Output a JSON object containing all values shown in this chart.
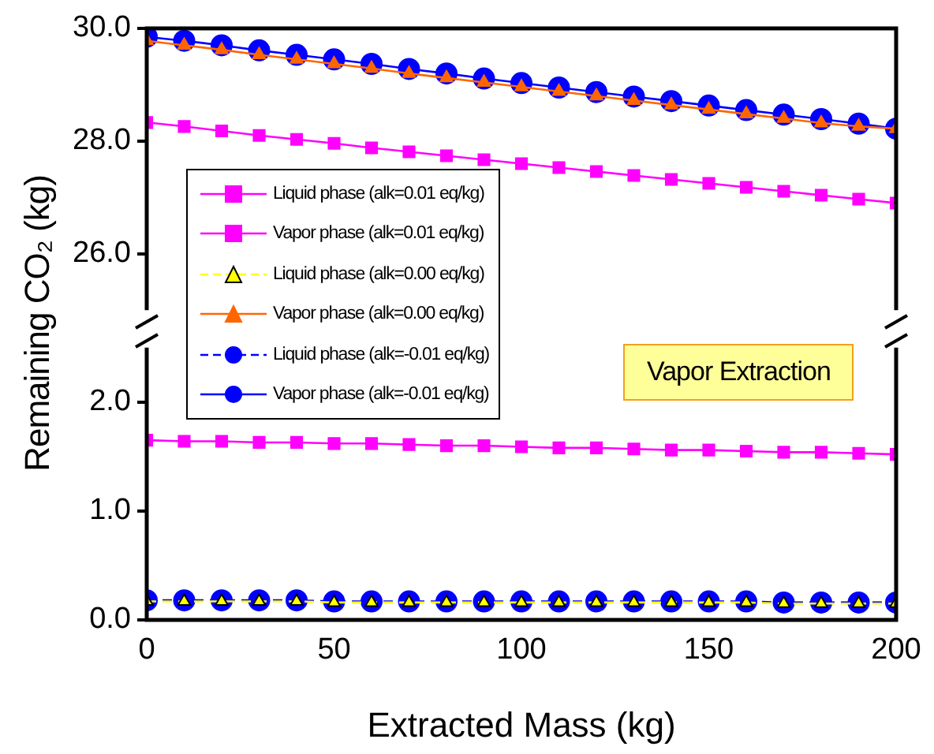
{
  "chart_data": [
    {
      "type": "line",
      "ylabel": "Remaining CO₂ (kg)",
      "x": [
        0,
        10,
        20,
        30,
        40,
        50,
        60,
        70,
        80,
        90,
        100,
        110,
        120,
        130,
        140,
        150,
        160,
        170,
        180,
        190,
        200
      ],
      "xlim": [
        0,
        200
      ],
      "xticks": [
        0,
        50,
        100,
        150,
        200
      ],
      "ylim": [
        25,
        30
      ],
      "yticks": [
        {
          "value": 26,
          "label": "26.0"
        },
        {
          "value": 28,
          "label": "28.0"
        },
        {
          "value": 30,
          "label": "30.0"
        }
      ],
      "tick_labels": "y",
      "grid": false,
      "legend": "bottom left",
      "series": [
        {
          "name": "Vapor phase (alk=0.01 eq/kg)",
          "color": "#ff00ff",
          "marker": "square",
          "line_style": "solid",
          "values": [
            28.33,
            28.26,
            28.18,
            28.1,
            28.03,
            27.96,
            27.88,
            27.81,
            27.74,
            27.67,
            27.6,
            27.53,
            27.46,
            27.39,
            27.32,
            27.25,
            27.18,
            27.11,
            27.04,
            26.97,
            26.9
          ]
        },
        {
          "name": "Vapor phase (alk=0.00 eq/kg)",
          "color": "#ff6600",
          "marker": "triangle",
          "line_style": "solid",
          "values": [
            29.78,
            29.7,
            29.62,
            29.53,
            29.45,
            29.37,
            29.29,
            29.2,
            29.12,
            29.04,
            28.96,
            28.88,
            28.8,
            28.72,
            28.64,
            28.56,
            28.48,
            28.4,
            28.32,
            28.26,
            28.22
          ]
        },
        {
          "name": "Vapor phase (alk=-0.01 eq/kg)",
          "color": "#0000ff",
          "marker": "circle",
          "line_style": "solid",
          "values": [
            29.85,
            29.78,
            29.7,
            29.61,
            29.53,
            29.45,
            29.37,
            29.28,
            29.2,
            29.11,
            29.03,
            28.95,
            28.87,
            28.79,
            28.71,
            28.63,
            28.55,
            28.47,
            28.39,
            28.31,
            28.22
          ]
        }
      ]
    },
    {
      "type": "line",
      "xlabel": "Extracted Mass (kg)",
      "x": [
        0,
        10,
        20,
        30,
        40,
        50,
        60,
        70,
        80,
        90,
        100,
        110,
        120,
        130,
        140,
        150,
        160,
        170,
        180,
        190,
        200
      ],
      "xlim": [
        0,
        200
      ],
      "xticks": [
        0,
        50,
        100,
        150,
        200
      ],
      "ylim": [
        0,
        2.5
      ],
      "yticks": [
        {
          "value": 0,
          "label": "0.0"
        },
        {
          "value": 1,
          "label": "1.0"
        },
        {
          "value": 2,
          "label": "2.0"
        }
      ],
      "grid": false,
      "legend": "top left",
      "annotations": [
        "Vapor Extraction"
      ],
      "series": [
        {
          "name": "Liquid phase (alk=0.01 eq/kg)",
          "color": "#ff00ff",
          "marker": "square",
          "line_style": "solid",
          "values": [
            1.65,
            1.64,
            1.64,
            1.63,
            1.63,
            1.62,
            1.62,
            1.61,
            1.6,
            1.6,
            1.59,
            1.58,
            1.58,
            1.57,
            1.56,
            1.56,
            1.55,
            1.54,
            1.54,
            1.53,
            1.52
          ]
        },
        {
          "name": "Liquid phase (alk=0.00 eq/kg)",
          "color": "#ffff00",
          "marker": "triangle",
          "line_style": "dashed",
          "values": [
            0.17,
            0.17,
            0.17,
            0.17,
            0.17,
            0.16,
            0.16,
            0.16,
            0.16,
            0.16,
            0.16,
            0.16,
            0.16,
            0.16,
            0.16,
            0.16,
            0.16,
            0.15,
            0.15,
            0.15,
            0.15
          ]
        },
        {
          "name": "Liquid phase (alk=-0.01 eq/kg)",
          "color": "#0000ff",
          "marker": "circle",
          "line_style": "dashed",
          "values": [
            0.18,
            0.18,
            0.18,
            0.18,
            0.18,
            0.17,
            0.17,
            0.17,
            0.17,
            0.17,
            0.17,
            0.17,
            0.17,
            0.17,
            0.17,
            0.17,
            0.17,
            0.16,
            0.16,
            0.16,
            0.16
          ]
        }
      ]
    }
  ]
}
